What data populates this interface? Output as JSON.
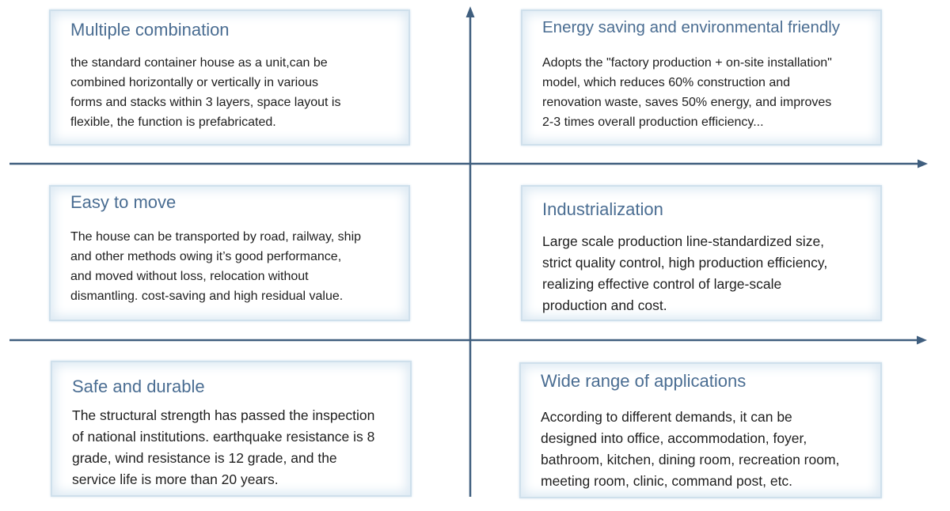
{
  "colors": {
    "axis": "#3f5e7e",
    "title": "#4a6d92",
    "body": "#1e1e1e",
    "card_border": "#cfe0ec"
  },
  "cards": {
    "top_left": {
      "title": "Multiple combination",
      "body": "the standard container house as a unit,can be\ncombined horizontally or vertically in various\nforms and stacks within 3 layers, space layout is\nflexible, the function is prefabricated."
    },
    "top_right": {
      "title": "Energy saving and environmental friendly",
      "body": "Adopts the \"factory production + on-site installation\"\nmodel, which reduces 60% construction and\nrenovation waste, saves 50% energy, and improves\n2-3 times overall production efficiency..."
    },
    "middle_left": {
      "title": "Easy to move",
      "body": "The house can be transported by road, railway, ship\nand other methods owing it’s good performance,\nand moved without loss, relocation without\ndismantling. cost-saving and high residual value."
    },
    "middle_right": {
      "title": "Industrialization",
      "body": "Large scale production line-standardized size,\nstrict quality control, high production efficiency,\nrealizing effective control of large-scale\nproduction and cost."
    },
    "bottom_left": {
      "title": "Safe and durable",
      "body": "The structural strength has passed the inspection\nof national institutions. earthquake resistance is 8\ngrade, wind resistance is 12 grade, and the\nservice life is more than 20 years."
    },
    "bottom_right": {
      "title": "Wide range of applications",
      "body": "According to different demands, it can be\ndesigned into office, accommodation, foyer,\nbathroom, kitchen, dining room, recreation room,\nmeeting room, clinic, command post, etc."
    }
  }
}
